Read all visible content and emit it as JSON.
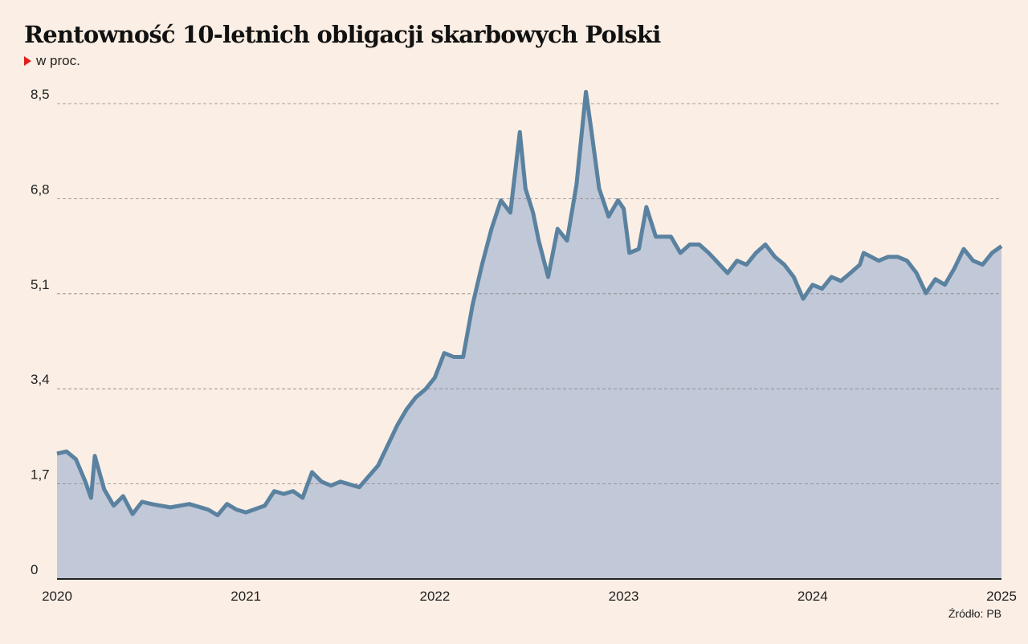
{
  "chart_data": {
    "type": "area",
    "title": "Rentowność 10-letnich obligacji skarbowych Polski",
    "subtitle": "w proc.",
    "source": "Źródło: PB",
    "xlabel": "",
    "ylabel": "",
    "xlim": [
      2020,
      2025
    ],
    "ylim": [
      0,
      8.5
    ],
    "x_ticks": [
      "2020",
      "2021",
      "2022",
      "2023",
      "2024",
      "2025"
    ],
    "y_ticks": [
      "0",
      "1,7",
      "3,4",
      "5,1",
      "6,8",
      "8,5"
    ],
    "grid": "horizontal dashed",
    "colors": {
      "line": "#5a82a0",
      "fill": "#c1c8d7",
      "background": "#fbeee4",
      "marker": "#e0201b"
    },
    "x": [
      2020.0,
      2020.05,
      2020.1,
      2020.15,
      2020.18,
      2020.2,
      2020.25,
      2020.3,
      2020.35,
      2020.4,
      2020.45,
      2020.5,
      2020.6,
      2020.7,
      2020.8,
      2020.85,
      2020.9,
      2020.95,
      2021.0,
      2021.1,
      2021.15,
      2021.2,
      2021.25,
      2021.3,
      2021.35,
      2021.4,
      2021.45,
      2021.5,
      2021.6,
      2021.7,
      2021.8,
      2021.85,
      2021.9,
      2021.95,
      2022.0,
      2022.05,
      2022.1,
      2022.15,
      2022.2,
      2022.25,
      2022.3,
      2022.35,
      2022.4,
      2022.45,
      2022.48,
      2022.52,
      2022.55,
      2022.6,
      2022.65,
      2022.7,
      2022.75,
      2022.8,
      2022.83,
      2022.87,
      2022.92,
      2022.97,
      2023.0,
      2023.03,
      2023.08,
      2023.12,
      2023.17,
      2023.25,
      2023.3,
      2023.35,
      2023.4,
      2023.45,
      2023.55,
      2023.6,
      2023.65,
      2023.7,
      2023.75,
      2023.8,
      2023.85,
      2023.9,
      2023.95,
      2024.0,
      2024.05,
      2024.1,
      2024.15,
      2024.2,
      2024.25,
      2024.27,
      2024.35,
      2024.4,
      2024.45,
      2024.5,
      2024.55,
      2024.6,
      2024.65,
      2024.7,
      2024.75,
      2024.8,
      2024.85,
      2024.9,
      2024.95,
      2025.0
    ],
    "values": [
      2.24,
      2.28,
      2.14,
      1.74,
      1.45,
      2.2,
      1.6,
      1.31,
      1.48,
      1.16,
      1.38,
      1.34,
      1.28,
      1.34,
      1.24,
      1.14,
      1.34,
      1.24,
      1.19,
      1.31,
      1.57,
      1.52,
      1.57,
      1.45,
      1.91,
      1.74,
      1.67,
      1.74,
      1.64,
      2.03,
      2.74,
      3.03,
      3.25,
      3.39,
      3.6,
      4.04,
      3.97,
      3.97,
      4.9,
      5.62,
      6.26,
      6.77,
      6.55,
      7.99,
      6.98,
      6.55,
      6.05,
      5.4,
      6.26,
      6.05,
      7.05,
      8.71,
      7.99,
      6.98,
      6.48,
      6.77,
      6.62,
      5.83,
      5.9,
      6.65,
      6.12,
      6.12,
      5.83,
      5.98,
      5.98,
      5.83,
      5.47,
      5.69,
      5.62,
      5.83,
      5.98,
      5.76,
      5.62,
      5.4,
      5.01,
      5.26,
      5.19,
      5.4,
      5.33,
      5.47,
      5.62,
      5.83,
      5.69,
      5.76,
      5.76,
      5.69,
      5.47,
      5.11,
      5.36,
      5.26,
      5.55,
      5.9,
      5.69,
      5.62,
      5.83,
      5.95
    ]
  }
}
